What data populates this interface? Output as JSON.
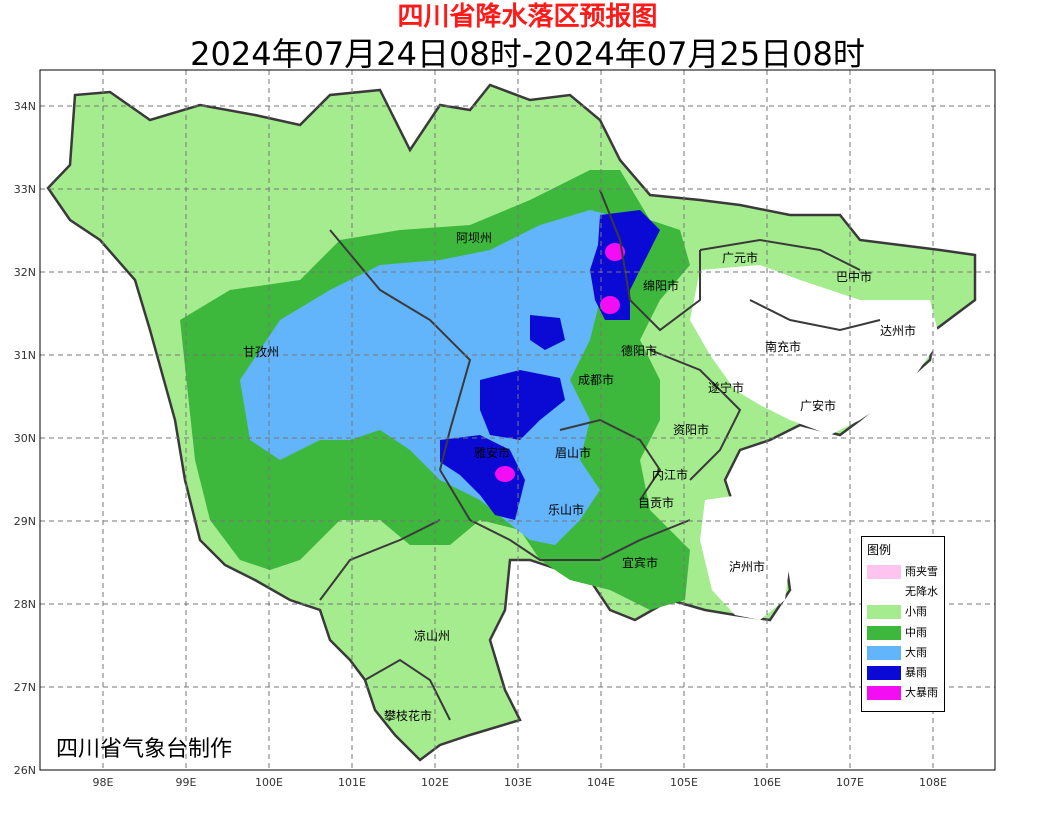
{
  "title": "四川省降水落区预报图",
  "subtitle": "2024年07月24日08时-2024年07月25日08时",
  "credit": "四川省气象台制作",
  "axes": {
    "lon_labels": [
      "98E",
      "99E",
      "100E",
      "101E",
      "102E",
      "103E",
      "104E",
      "105E",
      "106E",
      "107E",
      "108E"
    ],
    "lat_labels": [
      "34N",
      "33N",
      "32N",
      "31N",
      "30N",
      "29N",
      "28N",
      "27N",
      "26N"
    ]
  },
  "colors": {
    "title": "#ff1a1a",
    "light_rain": "#a5ec8f",
    "moderate_rain": "#3db83d",
    "heavy_rain": "#62b4fb",
    "rainstorm": "#0a0ad4",
    "heavy_rainstorm": "#f20df2",
    "sleet": "#ffc3ef",
    "no_rain": "#ffffff",
    "boundary": "#3a3a3a"
  },
  "legend": {
    "title": "图例",
    "items": [
      {
        "label": "雨夹雪",
        "color": "#ffc3ef"
      },
      {
        "label": "无降水",
        "color": "#ffffff"
      },
      {
        "label": "小雨",
        "color": "#a5ec8f"
      },
      {
        "label": "中雨",
        "color": "#3db83d"
      },
      {
        "label": "大雨",
        "color": "#62b4fb"
      },
      {
        "label": "暴雨",
        "color": "#0a0ad4"
      },
      {
        "label": "大暴雨",
        "color": "#f20df2"
      }
    ]
  },
  "cities": [
    "阿坝州",
    "甘孜州",
    "广元市",
    "巴中市",
    "绵阳市",
    "达州市",
    "南充市",
    "德阳市",
    "成都市",
    "遂宁市",
    "广安市",
    "资阳市",
    "雅安市",
    "眉山市",
    "内江市",
    "自贡市",
    "乐山市",
    "宜宾市",
    "泸州市",
    "凉山州",
    "攀枝花市"
  ]
}
